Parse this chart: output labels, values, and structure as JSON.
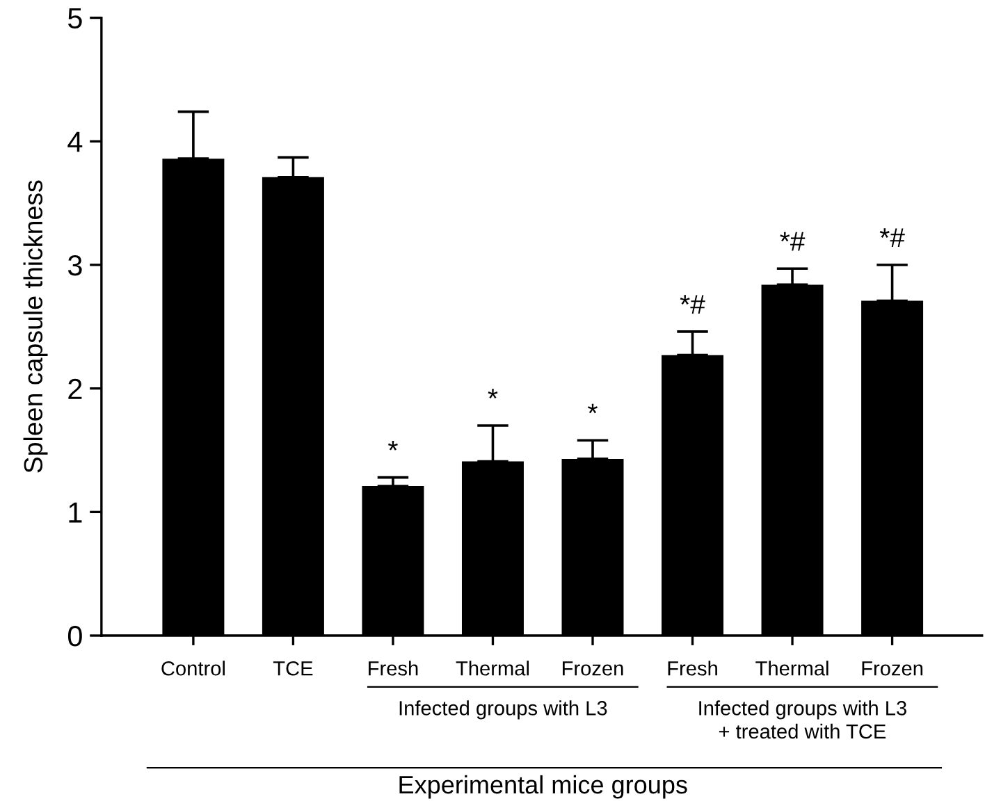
{
  "chart_data": {
    "type": "bar",
    "ylabel": "Spleen capsule thickness",
    "xlabel": "Experimental mice groups",
    "categories": [
      "Control",
      "TCE",
      "Fresh",
      "Thermal",
      "Frozen",
      "Fresh",
      "Thermal",
      "Frozen"
    ],
    "values": [
      3.86,
      3.71,
      1.21,
      1.41,
      1.43,
      2.27,
      2.84,
      2.71
    ],
    "errors": [
      0.38,
      0.16,
      0.07,
      0.29,
      0.15,
      0.19,
      0.13,
      0.29
    ],
    "color": "#000000",
    "ylim": [
      0,
      5
    ],
    "yticks": [
      0,
      1,
      2,
      3,
      4,
      5
    ],
    "grid": false,
    "legend": false,
    "annotations": [
      "*",
      "*",
      "*",
      "*#",
      "*#",
      "*#",
      "Infected groups with L3",
      "Infected groups with L3\n+ treated with TCE"
    ]
  }
}
